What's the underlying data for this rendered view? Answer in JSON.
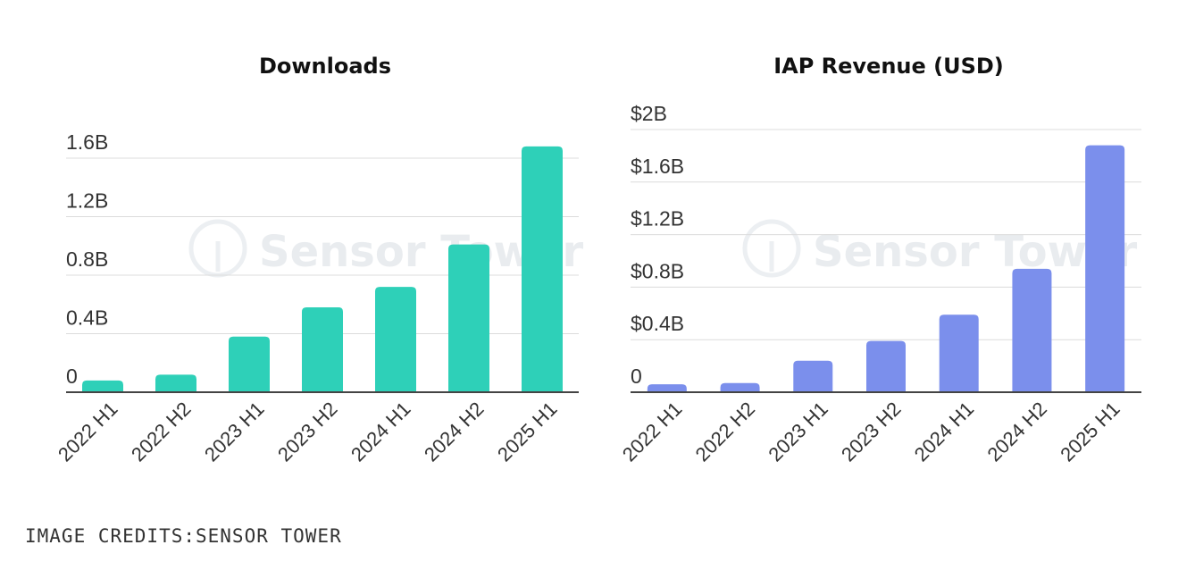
{
  "watermark": "Sensor Tower",
  "credits": "IMAGE CREDITS:SENSOR TOWER",
  "chart_data": [
    {
      "type": "bar",
      "title": "Downloads",
      "categories": [
        "2022 H1",
        "2022 H2",
        "2023 H1",
        "2023 H2",
        "2024 H1",
        "2024 H2",
        "2025 H1"
      ],
      "values": [
        0.08,
        0.12,
        0.38,
        0.58,
        0.72,
        1.01,
        1.68
      ],
      "ylim": [
        0,
        1.6
      ],
      "yticks": [
        0,
        0.4,
        0.8,
        1.2,
        1.6
      ],
      "ytick_labels": [
        "0",
        "0.4B",
        "0.8B",
        "1.2B",
        "1.6B"
      ],
      "color": "#2ed0b8",
      "xlabel": "",
      "ylabel": "",
      "grid": true
    },
    {
      "type": "bar",
      "title": "IAP Revenue (USD)",
      "categories": [
        "2022 H1",
        "2022 H2",
        "2023 H1",
        "2023 H2",
        "2024 H1",
        "2024 H2",
        "2025 H1"
      ],
      "values": [
        0.06,
        0.07,
        0.24,
        0.39,
        0.59,
        0.94,
        1.88
      ],
      "ylim": [
        0,
        2
      ],
      "yticks": [
        0,
        0.4,
        0.8,
        1.2,
        1.6,
        2
      ],
      "ytick_labels": [
        "0",
        "$0.4B",
        "$0.8B",
        "$1.2B",
        "$1.6B",
        "$2B"
      ],
      "color": "#7b8fec",
      "xlabel": "",
      "ylabel": "",
      "grid": true
    }
  ]
}
